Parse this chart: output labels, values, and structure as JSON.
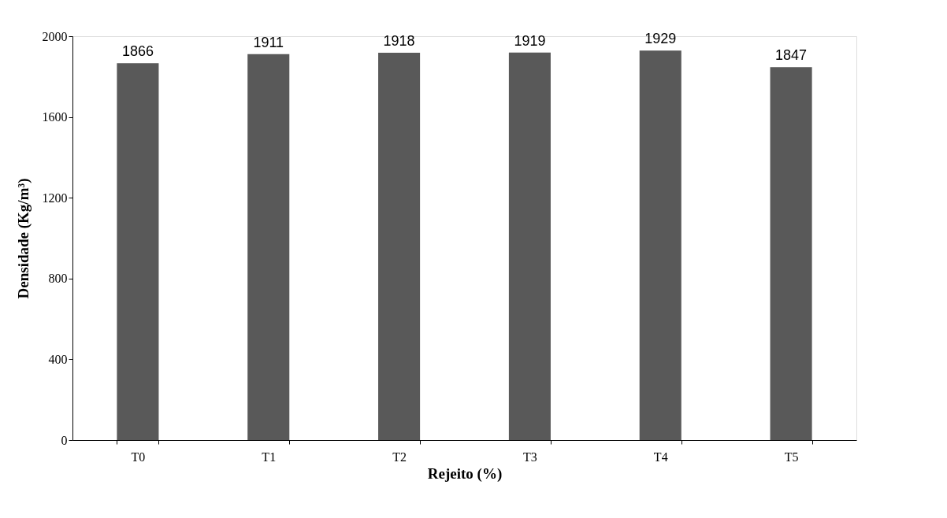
{
  "chart_data": {
    "type": "bar",
    "xlabel": "Rejeito (%)",
    "ylabel": "Densidade (Kg/m³)",
    "categories": [
      "T0",
      "T1",
      "T2",
      "T3",
      "T4",
      "T5"
    ],
    "values": [
      1866,
      1911,
      1918,
      1919,
      1929,
      1847
    ],
    "color": "#595959",
    "ylim": [
      0,
      2000
    ],
    "yticks": [
      0,
      400,
      800,
      1200,
      1600,
      2000
    ],
    "grid": false,
    "data_labels": true
  }
}
